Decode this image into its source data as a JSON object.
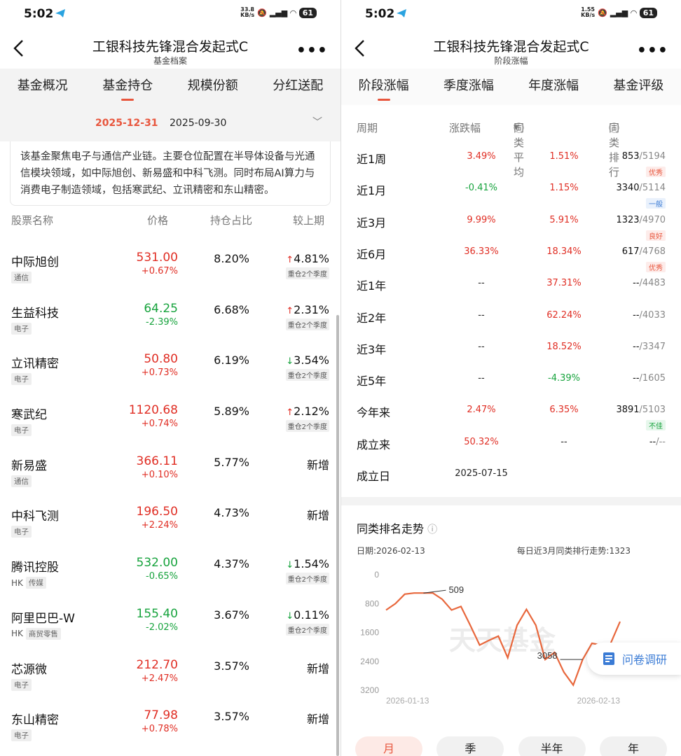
{
  "left": {
    "status": {
      "time": "5:02",
      "speed_num": "33.8",
      "speed_unit": "KB/s",
      "battery": "61"
    },
    "nav": {
      "title": "工银科技先锋混合发起式C",
      "subtitle": "基金档案"
    },
    "tabs": [
      "基金概况",
      "基金持仓",
      "规模份额",
      "分红送配"
    ],
    "active_tab": 1,
    "dates": [
      "2025-12-31",
      "2025-09-30"
    ],
    "description": "该基金聚焦电子与通信产业链。主要仓位配置在半导体设备与光通信模块领域，如中际旭创、新易盛和中科飞测。同时布局AI算力与消费电子制造领域，包括寒武纪、立讯精密和东山精密。",
    "columns": [
      "股票名称",
      "价格",
      "持仓占比",
      "较上期"
    ],
    "holdings": [
      {
        "name": "中际旭创",
        "market": "",
        "sector": "通信",
        "price": "531.00",
        "change": "+0.67%",
        "dir": "up",
        "weight": "8.20%",
        "cmp": "4.81%",
        "cmp_dir": "up",
        "cmp_note": "重仓2个季度"
      },
      {
        "name": "生益科技",
        "market": "",
        "sector": "电子",
        "price": "64.25",
        "change": "-2.39%",
        "dir": "down",
        "weight": "6.68%",
        "cmp": "2.31%",
        "cmp_dir": "up",
        "cmp_note": "重仓2个季度"
      },
      {
        "name": "立讯精密",
        "market": "",
        "sector": "电子",
        "price": "50.80",
        "change": "+0.73%",
        "dir": "up",
        "weight": "6.19%",
        "cmp": "3.54%",
        "cmp_dir": "down",
        "cmp_note": "重仓2个季度"
      },
      {
        "name": "寒武纪",
        "market": "",
        "sector": "电子",
        "price": "1120.68",
        "change": "+0.74%",
        "dir": "up",
        "weight": "5.89%",
        "cmp": "2.12%",
        "cmp_dir": "up",
        "cmp_note": "重仓2个季度"
      },
      {
        "name": "新易盛",
        "market": "",
        "sector": "通信",
        "price": "366.11",
        "change": "+0.10%",
        "dir": "up",
        "weight": "5.77%",
        "cmp": "新增",
        "cmp_dir": "new",
        "cmp_note": ""
      },
      {
        "name": "中科飞测",
        "market": "",
        "sector": "电子",
        "price": "196.50",
        "change": "+2.24%",
        "dir": "up",
        "weight": "4.73%",
        "cmp": "新增",
        "cmp_dir": "new",
        "cmp_note": ""
      },
      {
        "name": "腾讯控股",
        "market": "HK",
        "sector": "传媒",
        "price": "532.00",
        "change": "-0.65%",
        "dir": "down",
        "weight": "4.37%",
        "cmp": "1.54%",
        "cmp_dir": "down",
        "cmp_note": "重仓2个季度"
      },
      {
        "name": "阿里巴巴-W",
        "market": "HK",
        "sector": "商贸零售",
        "price": "155.40",
        "change": "-2.02%",
        "dir": "down",
        "weight": "3.67%",
        "cmp": "0.11%",
        "cmp_dir": "down",
        "cmp_note": "重仓2个季度"
      },
      {
        "name": "芯源微",
        "market": "",
        "sector": "电子",
        "price": "212.70",
        "change": "+2.47%",
        "dir": "up",
        "weight": "3.57%",
        "cmp": "新增",
        "cmp_dir": "new",
        "cmp_note": ""
      },
      {
        "name": "东山精密",
        "market": "",
        "sector": "电子",
        "price": "77.98",
        "change": "+0.78%",
        "dir": "up",
        "weight": "3.57%",
        "cmp": "新增",
        "cmp_dir": "new",
        "cmp_note": ""
      }
    ]
  },
  "right": {
    "status": {
      "time": "5:02",
      "speed_num": "1.55",
      "speed_unit": "KB/s",
      "battery": "61"
    },
    "nav": {
      "title": "工银科技先锋混合发起式C",
      "subtitle": "阶段涨幅"
    },
    "tabs": [
      "阶段涨幅",
      "季度涨幅",
      "年度涨幅",
      "基金评级"
    ],
    "active_tab": 0,
    "columns": [
      "周期",
      "涨跌幅",
      "同类平均",
      "同类排行"
    ],
    "periods": [
      {
        "period": "近1周",
        "ret": "3.49%",
        "ret_c": "red",
        "avg": "1.51%",
        "avg_c": "red",
        "rank": "853",
        "total": "/5194",
        "rating": "优秀",
        "rating_c": "rt-y"
      },
      {
        "period": "近1月",
        "ret": "-0.41%",
        "ret_c": "green",
        "avg": "1.15%",
        "avg_c": "red",
        "rank": "3340",
        "total": "/5114",
        "rating": "一般",
        "rating_c": "rt-g"
      },
      {
        "period": "近3月",
        "ret": "9.99%",
        "ret_c": "red",
        "avg": "5.91%",
        "avg_c": "red",
        "rank": "1323",
        "total": "/4970",
        "rating": "良好",
        "rating_c": "rt-l"
      },
      {
        "period": "近6月",
        "ret": "36.33%",
        "ret_c": "red",
        "avg": "18.34%",
        "avg_c": "red",
        "rank": "617",
        "total": "/4768",
        "rating": "优秀",
        "rating_c": "rt-y"
      },
      {
        "period": "近1年",
        "ret": "--",
        "ret_c": "",
        "avg": "37.31%",
        "avg_c": "red",
        "rank": "--",
        "total": "/4483",
        "rating": "",
        "rating_c": ""
      },
      {
        "period": "近2年",
        "ret": "--",
        "ret_c": "",
        "avg": "62.24%",
        "avg_c": "red",
        "rank": "--",
        "total": "/4033",
        "rating": "",
        "rating_c": ""
      },
      {
        "period": "近3年",
        "ret": "--",
        "ret_c": "",
        "avg": "18.52%",
        "avg_c": "red",
        "rank": "--",
        "total": "/3347",
        "rating": "",
        "rating_c": ""
      },
      {
        "period": "近5年",
        "ret": "--",
        "ret_c": "",
        "avg": "-4.39%",
        "avg_c": "green",
        "rank": "--",
        "total": "/1605",
        "rating": "",
        "rating_c": ""
      },
      {
        "period": "今年来",
        "ret": "2.47%",
        "ret_c": "red",
        "avg": "6.35%",
        "avg_c": "red",
        "rank": "3891",
        "total": "/5103",
        "rating": "不佳",
        "rating_c": "rt-b"
      },
      {
        "period": "成立来",
        "ret": "50.32%",
        "ret_c": "red",
        "avg": "--",
        "avg_c": "",
        "rank": "--",
        "total": "/--",
        "rating": "",
        "rating_c": ""
      },
      {
        "period": "成立日",
        "ret": "2025-07-15",
        "ret_c": "",
        "avg": "",
        "avg_c": "",
        "rank": "",
        "total": "",
        "rating": "",
        "rating_c": ""
      }
    ],
    "chart_section": {
      "title": "同类排名走势",
      "date_label": "日期:2026-02-13",
      "summary": "每日近3月同类排行走势:1323",
      "watermark": "天天基金",
      "survey_label": "问卷调研",
      "range_buttons": [
        "月",
        "季",
        "半年",
        "年"
      ],
      "active_range": 0
    },
    "chart_data": {
      "type": "line",
      "y_inverted": true,
      "ylim": [
        0,
        3200
      ],
      "yticks": [
        "0",
        "800",
        "1600",
        "2400",
        "3200"
      ],
      "xticks": [
        "2026-01-13",
        "2026-02-13"
      ],
      "annotations": [
        {
          "label": "509",
          "index": 4
        },
        {
          "label": "3058",
          "index": 21
        }
      ],
      "color": "#e8673c",
      "series": [
        {
          "values": [
            980,
            800,
            540,
            509,
            509,
            509,
            680,
            980,
            880,
            1400,
            1950,
            1820,
            1700,
            2300,
            1400,
            960,
            1400,
            2350,
            2150,
            2700,
            3058,
            2350,
            1900,
            1950,
            1900,
            1300
          ]
        }
      ]
    }
  }
}
